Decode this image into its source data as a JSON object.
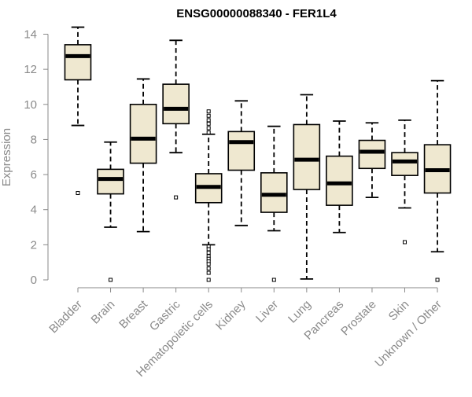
{
  "colors": {
    "box_fill": "#efe8d0",
    "box_stroke": "#000000",
    "median": "#000000",
    "axis": "#8a8a8a",
    "text": "#8a8a8a",
    "title": "#000000"
  },
  "chart_data": {
    "type": "box",
    "title": "ENSG00000088340 - FER1L4",
    "xlabel": "",
    "ylabel": "Expression",
    "ylim": [
      0,
      14
    ],
    "yticks": [
      0,
      2,
      4,
      6,
      8,
      10,
      12,
      14
    ],
    "grid": false,
    "legend": "none",
    "categories": [
      "Bladder",
      "Brain",
      "Breast",
      "Gastric",
      "Hematopoietic cells",
      "Kidney",
      "Liver",
      "Lung",
      "Pancreas",
      "Prostate",
      "Skin",
      "Unknown / Other"
    ],
    "boxes": [
      {
        "category": "Bladder",
        "whisker_low": 8.8,
        "q1": 11.4,
        "median": 12.75,
        "q3": 13.4,
        "whisker_high": 14.4,
        "outliers": [
          4.95
        ]
      },
      {
        "category": "Brain",
        "whisker_low": 3.0,
        "q1": 4.9,
        "median": 5.75,
        "q3": 6.3,
        "whisker_high": 7.85,
        "outliers": [
          0
        ]
      },
      {
        "category": "Breast",
        "whisker_low": 2.75,
        "q1": 6.65,
        "median": 8.05,
        "q3": 10.0,
        "whisker_high": 11.45,
        "outliers": []
      },
      {
        "category": "Gastric",
        "whisker_low": 7.25,
        "q1": 8.9,
        "median": 9.75,
        "q3": 11.15,
        "whisker_high": 13.65,
        "outliers": [
          4.7
        ]
      },
      {
        "category": "Hematopoietic cells",
        "whisker_low": 2.0,
        "q1": 4.4,
        "median": 5.3,
        "q3": 6.05,
        "whisker_high": 8.3,
        "outliers": [
          9.6,
          9.35,
          9.1,
          8.9,
          8.65,
          8.4,
          1.9,
          1.75,
          1.55,
          1.35,
          1.2,
          1.05,
          0.9,
          0.65,
          0.4,
          0
        ]
      },
      {
        "category": "Kidney",
        "whisker_low": 3.1,
        "q1": 6.25,
        "median": 7.85,
        "q3": 8.45,
        "whisker_high": 10.2,
        "outliers": []
      },
      {
        "category": "Liver",
        "whisker_low": 2.8,
        "q1": 3.85,
        "median": 4.85,
        "q3": 6.1,
        "whisker_high": 8.75,
        "outliers": [
          0
        ]
      },
      {
        "category": "Lung",
        "whisker_low": 0.05,
        "q1": 5.15,
        "median": 6.85,
        "q3": 8.85,
        "whisker_high": 10.55,
        "outliers": []
      },
      {
        "category": "Pancreas",
        "whisker_low": 2.7,
        "q1": 4.25,
        "median": 5.5,
        "q3": 7.05,
        "whisker_high": 9.05,
        "outliers": []
      },
      {
        "category": "Prostate",
        "whisker_low": 4.7,
        "q1": 6.35,
        "median": 7.3,
        "q3": 7.95,
        "whisker_high": 8.95,
        "outliers": []
      },
      {
        "category": "Skin",
        "whisker_low": 4.1,
        "q1": 5.95,
        "median": 6.75,
        "q3": 7.25,
        "whisker_high": 9.1,
        "outliers": [
          2.15
        ]
      },
      {
        "category": "Unknown / Other",
        "whisker_low": 1.6,
        "q1": 4.95,
        "median": 6.25,
        "q3": 7.7,
        "whisker_high": 11.35,
        "outliers": [
          0
        ]
      }
    ]
  }
}
